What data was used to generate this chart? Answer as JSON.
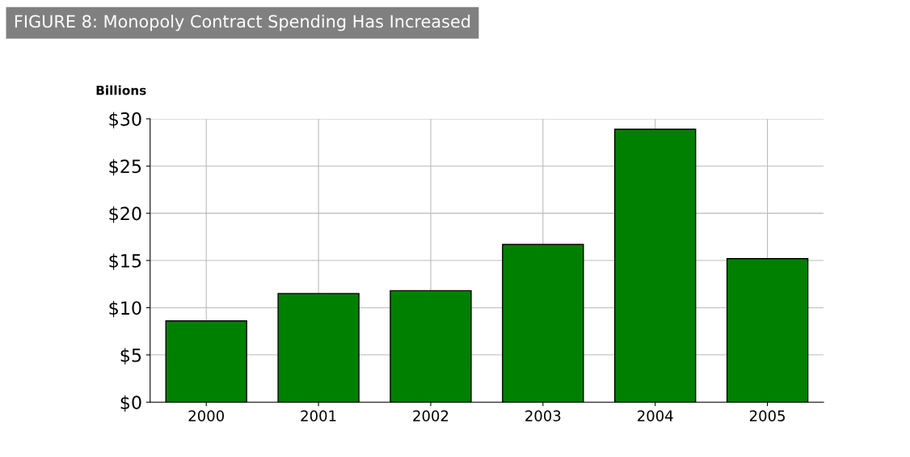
{
  "chart_data": {
    "type": "bar",
    "title": "FIGURE 8: Monopoly Contract Spending Has Increased",
    "ylabel": "Billions",
    "categories": [
      "2000",
      "2001",
      "2002",
      "2003",
      "2004",
      "2005"
    ],
    "values": [
      8.6,
      11.5,
      11.8,
      16.7,
      28.9,
      15.2
    ],
    "color": "#008000",
    "ylim": [
      0,
      30
    ],
    "yticks": [
      {
        "value": 0,
        "label": "$0"
      },
      {
        "value": 5,
        "label": "$5"
      },
      {
        "value": 10,
        "label": "$10"
      },
      {
        "value": 15,
        "label": "$15"
      },
      {
        "value": 20,
        "label": "$20"
      },
      {
        "value": 25,
        "label": "$25"
      },
      {
        "value": 30,
        "label": "$30"
      }
    ],
    "grid": true
  }
}
